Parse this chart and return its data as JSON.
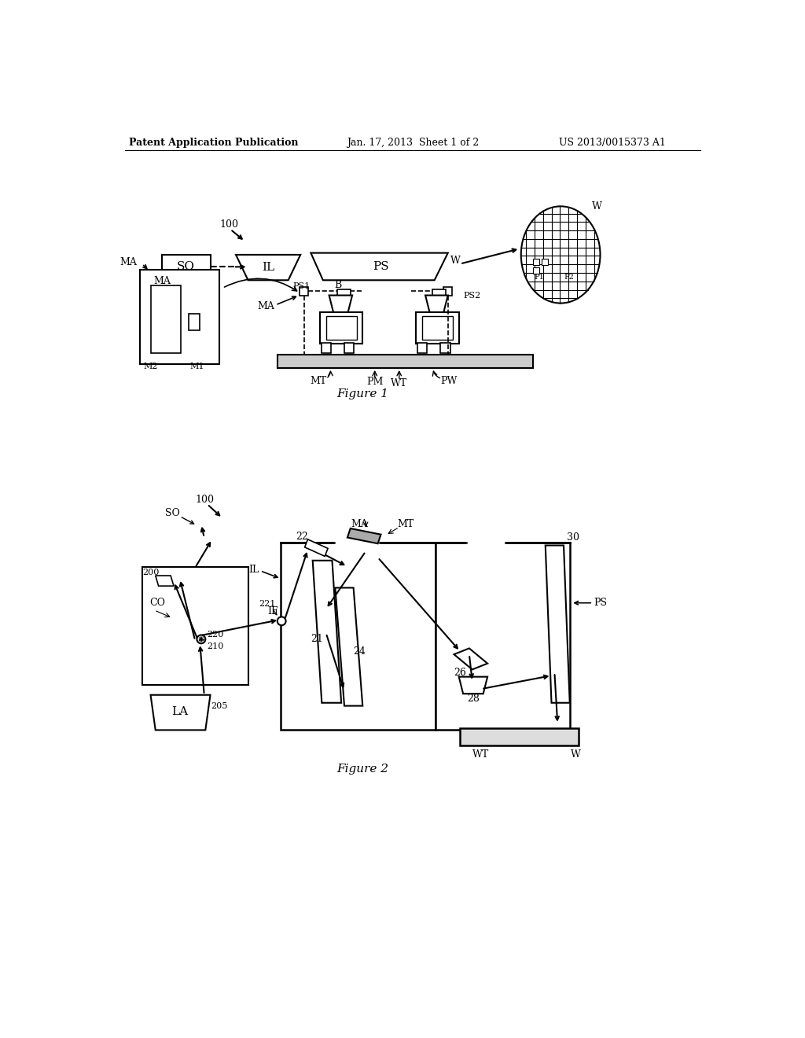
{
  "header_left": "Patent Application Publication",
  "header_mid": "Jan. 17, 2013  Sheet 1 of 2",
  "header_right": "US 2013/0015373 A1",
  "fig1_caption": "Figure 1",
  "fig2_caption": "Figure 2",
  "bg_color": "#ffffff"
}
